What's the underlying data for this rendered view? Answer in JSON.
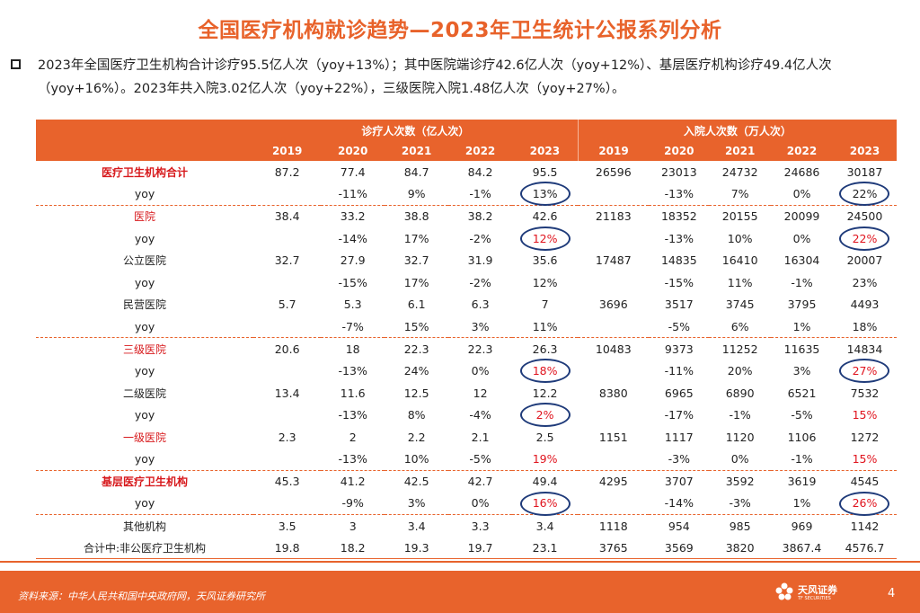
{
  "title": "全国医疗机构就诊趋势—2023年卫生统计公报系列分析",
  "summary": "2023年全国医疗卫生机构合计诊疗95.5亿人次（yoy+13%）；其中医院端诊疗42.6亿人次（yoy+12%）、基层医疗机构诊疗49.4亿人次（yoy+16%）。2023年共入院3.02亿人次（yoy+22%），三级医院入院1.48亿人次（yoy+27%）。",
  "table": {
    "group_visits": "诊疗人次数（亿人次）",
    "group_admissions": "入院人次数（万人次）",
    "years": [
      "2019",
      "2020",
      "2021",
      "2022",
      "2023"
    ],
    "rows": [
      {
        "label": "医疗卫生机构合计",
        "v": [
          "87.2",
          "77.4",
          "84.7",
          "84.2",
          "95.5"
        ],
        "a": [
          "26596",
          "23013",
          "24732",
          "24686",
          "30187"
        ]
      },
      {
        "label": "yoy",
        "v": [
          "",
          "-11%",
          "9%",
          "-1%",
          "13%"
        ],
        "a": [
          "",
          "-13%",
          "7%",
          "0%",
          "22%"
        ]
      },
      {
        "label": "医院",
        "v": [
          "38.4",
          "33.2",
          "38.8",
          "38.2",
          "42.6"
        ],
        "a": [
          "21183",
          "18352",
          "20155",
          "20099",
          "24500"
        ]
      },
      {
        "label": "yoy",
        "v": [
          "",
          "-14%",
          "17%",
          "-2%",
          "12%"
        ],
        "a": [
          "",
          "-13%",
          "10%",
          "0%",
          "22%"
        ]
      },
      {
        "label": "公立医院",
        "v": [
          "32.7",
          "27.9",
          "32.7",
          "31.9",
          "35.6"
        ],
        "a": [
          "17487",
          "14835",
          "16410",
          "16304",
          "20007"
        ]
      },
      {
        "label": "yoy",
        "v": [
          "",
          "-15%",
          "17%",
          "-2%",
          "12%"
        ],
        "a": [
          "",
          "-15%",
          "11%",
          "-1%",
          "23%"
        ]
      },
      {
        "label": "民营医院",
        "v": [
          "5.7",
          "5.3",
          "6.1",
          "6.3",
          "7"
        ],
        "a": [
          "3696",
          "3517",
          "3745",
          "3795",
          "4493"
        ]
      },
      {
        "label": "yoy",
        "v": [
          "",
          "-7%",
          "15%",
          "3%",
          "11%"
        ],
        "a": [
          "",
          "-5%",
          "6%",
          "1%",
          "18%"
        ]
      },
      {
        "label": "三级医院",
        "v": [
          "20.6",
          "18",
          "22.3",
          "22.3",
          "26.3"
        ],
        "a": [
          "10483",
          "9373",
          "11252",
          "11635",
          "14834"
        ]
      },
      {
        "label": "yoy",
        "v": [
          "",
          "-13%",
          "24%",
          "0%",
          "18%"
        ],
        "a": [
          "",
          "-11%",
          "20%",
          "3%",
          "27%"
        ]
      },
      {
        "label": "二级医院",
        "v": [
          "13.4",
          "11.6",
          "12.5",
          "12",
          "12.2"
        ],
        "a": [
          "8380",
          "6965",
          "6890",
          "6521",
          "7532"
        ]
      },
      {
        "label": "yoy",
        "v": [
          "",
          "-13%",
          "8%",
          "-4%",
          "2%"
        ],
        "a": [
          "",
          "-17%",
          "-1%",
          "-5%",
          "15%"
        ]
      },
      {
        "label": "一级医院",
        "v": [
          "2.3",
          "2",
          "2.2",
          "2.1",
          "2.5"
        ],
        "a": [
          "1151",
          "1117",
          "1120",
          "1106",
          "1272"
        ]
      },
      {
        "label": "yoy",
        "v": [
          "",
          "-13%",
          "10%",
          "-5%",
          "19%"
        ],
        "a": [
          "",
          "-3%",
          "0%",
          "-1%",
          "15%"
        ]
      },
      {
        "label": "基层医疗卫生机构",
        "v": [
          "45.3",
          "41.2",
          "42.5",
          "42.7",
          "49.4"
        ],
        "a": [
          "4295",
          "3707",
          "3592",
          "3619",
          "4545"
        ]
      },
      {
        "label": "yoy",
        "v": [
          "",
          "-9%",
          "3%",
          "0%",
          "16%"
        ],
        "a": [
          "",
          "-14%",
          "-3%",
          "1%",
          "26%"
        ]
      },
      {
        "label": "其他机构",
        "v": [
          "3.5",
          "3",
          "3.4",
          "3.3",
          "3.4"
        ],
        "a": [
          "1118",
          "954",
          "985",
          "969",
          "1142"
        ]
      },
      {
        "label": "合计中:非公医疗卫生机构",
        "v": [
          "19.8",
          "18.2",
          "19.3",
          "19.7",
          "23.1"
        ],
        "a": [
          "3765",
          "3569",
          "3820",
          "3867.4",
          "4576.7"
        ]
      }
    ]
  },
  "colors": {
    "accent": "#e8632c",
    "highlight": "#e0141e",
    "circle": "#1f3b7a"
  },
  "footer": {
    "source": "资料来源：中华人民共和国中央政府网，天风证券研究所",
    "logo_name": "天风证券",
    "logo_sub": "TF SECURITIES",
    "page": "4"
  }
}
